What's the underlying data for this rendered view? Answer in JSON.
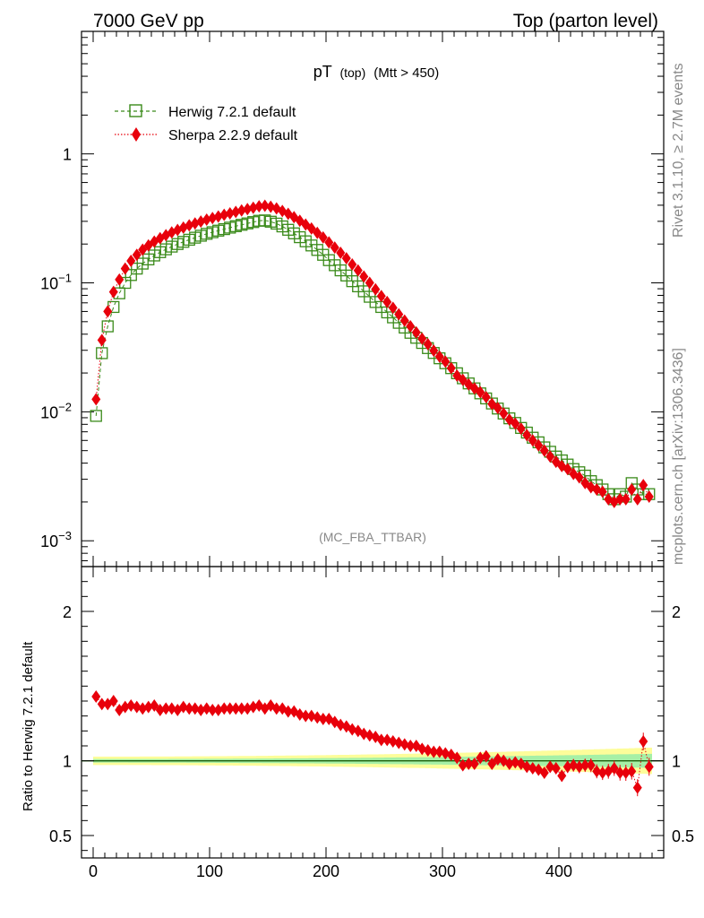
{
  "header": {
    "left_label": "7000 GeV pp",
    "right_label": "Top (parton level)"
  },
  "side_labels": {
    "rivet": "Rivet 3.1.10, ≥ 2.7M events",
    "mcplots": "mcplots.cern.ch [arXiv:1306.3436]"
  },
  "chart_data": {
    "type": "scatter",
    "title_main": "pT",
    "title_sub": "(top)",
    "title_cut": "(Mtt > 450)",
    "analysis_label": "(MC_FBA_TTBAR)",
    "xlim": [
      -10,
      490
    ],
    "ylim_main_log10": [
      -3.2,
      0.95
    ],
    "ylim_ratio": [
      0.35,
      2.3
    ],
    "x_ticks": [
      0,
      100,
      200,
      300,
      400
    ],
    "x_tick_labels": [
      "0",
      "100",
      "200",
      "300",
      "400"
    ],
    "y_ticks_main": [
      -3,
      -2,
      -1,
      0
    ],
    "y_tick_labels_main": [
      {
        "base": "10",
        "exp": "−3"
      },
      {
        "base": "10",
        "exp": "−2"
      },
      {
        "base": "10",
        "exp": "−1"
      },
      {
        "base": "1",
        "exp": ""
      }
    ],
    "y_ticks_ratio": [
      0.5,
      1,
      2
    ],
    "y_tick_labels_ratio": [
      "0.5",
      "1",
      "2"
    ],
    "ratio_ylabel": "Ratio to Herwig 7.2.1 default",
    "legend_position": "top-left",
    "x": [
      2.5,
      7.5,
      12.5,
      17.5,
      22.5,
      27.5,
      32.5,
      37.5,
      42.5,
      47.5,
      52.5,
      57.5,
      62.5,
      67.5,
      72.5,
      77.5,
      82.5,
      87.5,
      92.5,
      97.5,
      102.5,
      107.5,
      112.5,
      117.5,
      122.5,
      127.5,
      132.5,
      137.5,
      142.5,
      147.5,
      152.5,
      157.5,
      162.5,
      167.5,
      172.5,
      177.5,
      182.5,
      187.5,
      192.5,
      197.5,
      202.5,
      207.5,
      212.5,
      217.5,
      222.5,
      227.5,
      232.5,
      237.5,
      242.5,
      247.5,
      252.5,
      257.5,
      262.5,
      267.5,
      272.5,
      277.5,
      282.5,
      287.5,
      292.5,
      297.5,
      302.5,
      307.5,
      312.5,
      317.5,
      322.5,
      327.5,
      332.5,
      337.5,
      342.5,
      347.5,
      352.5,
      357.5,
      362.5,
      367.5,
      372.5,
      377.5,
      382.5,
      387.5,
      392.5,
      397.5,
      402.5,
      407.5,
      412.5,
      417.5,
      422.5,
      427.5,
      432.5,
      437.5,
      442.5,
      447.5,
      452.5,
      457.5,
      462.5,
      467.5,
      472.5,
      477.5
    ],
    "series": [
      {
        "name": "Herwig 7.2.1 default",
        "color": "#3a8a1a",
        "marker": "open-square",
        "line": "dashed",
        "values": [
          0.0093,
          0.0285,
          0.046,
          0.065,
          0.083,
          0.1,
          0.115,
          0.129,
          0.141,
          0.152,
          0.163,
          0.173,
          0.182,
          0.191,
          0.2,
          0.208,
          0.216,
          0.224,
          0.232,
          0.24,
          0.247,
          0.254,
          0.261,
          0.268,
          0.275,
          0.282,
          0.289,
          0.296,
          0.303,
          0.305,
          0.298,
          0.288,
          0.274,
          0.258,
          0.242,
          0.226,
          0.21,
          0.195,
          0.18,
          0.165,
          0.15,
          0.137,
          0.125,
          0.114,
          0.103,
          0.094,
          0.086,
          0.078,
          0.071,
          0.065,
          0.059,
          0.054,
          0.049,
          0.045,
          0.041,
          0.0375,
          0.0342,
          0.0312,
          0.0286,
          0.026,
          0.0238,
          0.0218,
          0.0199,
          0.0182,
          0.0166,
          0.0152,
          0.0139,
          0.0127,
          0.0116,
          0.0106,
          0.0097,
          0.0089,
          0.0082,
          0.0075,
          0.0069,
          0.0063,
          0.0058,
          0.0053,
          0.0049,
          0.0045,
          0.0042,
          0.0039,
          0.0036,
          0.0034,
          0.0032,
          0.0029,
          0.0027,
          0.0025,
          0.0023,
          0.0021,
          0.0023,
          0.0022,
          0.0028,
          0.0025,
          0.0023,
          0.0023
        ]
      },
      {
        "name": "Sherpa 2.2.9 default",
        "color": "#e8000b",
        "marker": "filled-diamond",
        "line": "dotted",
        "values": [
          0.0125,
          0.036,
          0.06,
          0.085,
          0.106,
          0.129,
          0.148,
          0.165,
          0.181,
          0.195,
          0.209,
          0.222,
          0.234,
          0.246,
          0.257,
          0.268,
          0.279,
          0.289,
          0.299,
          0.309,
          0.318,
          0.327,
          0.337,
          0.346,
          0.355,
          0.364,
          0.373,
          0.382,
          0.392,
          0.396,
          0.389,
          0.378,
          0.361,
          0.343,
          0.323,
          0.303,
          0.283,
          0.264,
          0.244,
          0.225,
          0.206,
          0.188,
          0.171,
          0.155,
          0.139,
          0.125,
          0.112,
          0.1,
          0.089,
          0.079,
          0.071,
          0.064,
          0.057,
          0.051,
          0.046,
          0.0413,
          0.0369,
          0.0334,
          0.0298,
          0.0268,
          0.0245,
          0.0218,
          0.0191,
          0.0177,
          0.0163,
          0.0152,
          0.0142,
          0.013,
          0.0115,
          0.0107,
          0.0097,
          0.0087,
          0.0081,
          0.0074,
          0.0066,
          0.006,
          0.0055,
          0.005,
          0.0045,
          0.0041,
          0.0038,
          0.0036,
          0.0033,
          0.0031,
          0.0028,
          0.0026,
          0.0025,
          0.0024,
          0.0021,
          0.002,
          0.0021,
          0.0021,
          0.0025,
          0.0021,
          0.0027,
          0.0022
        ],
        "ratio": [
          1.43,
          1.38,
          1.38,
          1.4,
          1.34,
          1.36,
          1.37,
          1.36,
          1.35,
          1.36,
          1.37,
          1.34,
          1.35,
          1.35,
          1.34,
          1.36,
          1.35,
          1.35,
          1.34,
          1.35,
          1.34,
          1.34,
          1.35,
          1.35,
          1.35,
          1.35,
          1.35,
          1.36,
          1.37,
          1.35,
          1.37,
          1.35,
          1.35,
          1.33,
          1.33,
          1.31,
          1.3,
          1.3,
          1.29,
          1.28,
          1.28,
          1.26,
          1.24,
          1.23,
          1.21,
          1.2,
          1.18,
          1.17,
          1.16,
          1.14,
          1.14,
          1.13,
          1.12,
          1.11,
          1.1,
          1.1,
          1.08,
          1.07,
          1.06,
          1.06,
          1.05,
          1.04,
          1.02,
          0.97,
          0.98,
          0.98,
          1.02,
          1.03,
          0.98,
          1.01,
          1.0,
          0.98,
          0.99,
          0.98,
          0.96,
          0.95,
          0.94,
          0.92,
          0.96,
          0.95,
          0.9,
          0.96,
          0.97,
          0.96,
          0.97,
          0.97,
          0.93,
          0.92,
          0.93,
          0.95,
          0.92,
          0.92,
          0.93,
          0.82,
          1.13,
          0.96
        ]
      }
    ]
  }
}
